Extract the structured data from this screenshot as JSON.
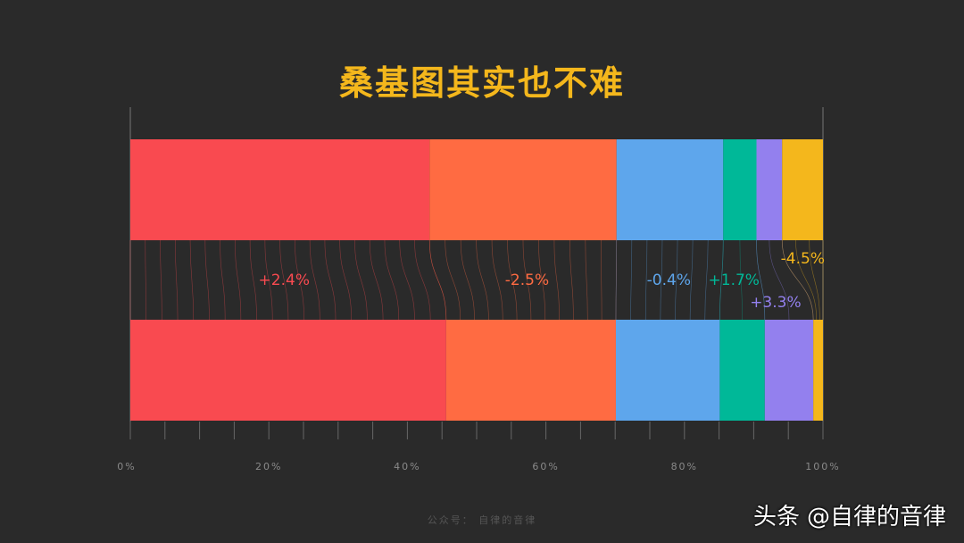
{
  "title": "桑基图其实也不难",
  "footer_text": "公众号： 自律的音律",
  "watermark": {
    "logo_text": "头条",
    "account": "@自律的音律"
  },
  "colors": {
    "background": "#2a2a2a",
    "series": [
      "#f94a50",
      "#ff6b42",
      "#5ea6ec",
      "#00b898",
      "#9380ee",
      "#f4b71c"
    ]
  },
  "chart_data": {
    "type": "stacked-bar-sankey",
    "orientation": "horizontal",
    "xlim": [
      0,
      100
    ],
    "x_ticks": [
      "0%",
      "20%",
      "40%",
      "60%",
      "80%",
      "100%"
    ],
    "minor_tick_step": 5,
    "grid": false,
    "bars": [
      "top",
      "bottom"
    ],
    "series": [
      {
        "values": [
          43.2,
          45.6
        ],
        "change_label": "+2.4%"
      },
      {
        "values": [
          27.0,
          24.5
        ],
        "change_label": "-2.5%"
      },
      {
        "values": [
          15.4,
          15.0
        ],
        "change_label": "-0.4%"
      },
      {
        "values": [
          4.8,
          6.5
        ],
        "change_label": "+1.7%"
      },
      {
        "values": [
          3.7,
          7.0
        ],
        "change_label": "+3.3%"
      },
      {
        "values": [
          5.9,
          1.4
        ],
        "change_label": "-4.5%"
      }
    ]
  }
}
